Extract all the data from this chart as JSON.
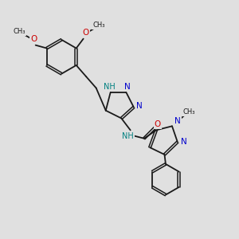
{
  "bg_color": "#e0e0e0",
  "bond_color": "#1a1a1a",
  "N_color": "#0000cc",
  "O_color": "#cc0000",
  "NH_color": "#008080",
  "figsize": [
    3.0,
    3.0
  ],
  "dpi": 100,
  "xlim": [
    0,
    10
  ],
  "ylim": [
    0,
    10
  ]
}
